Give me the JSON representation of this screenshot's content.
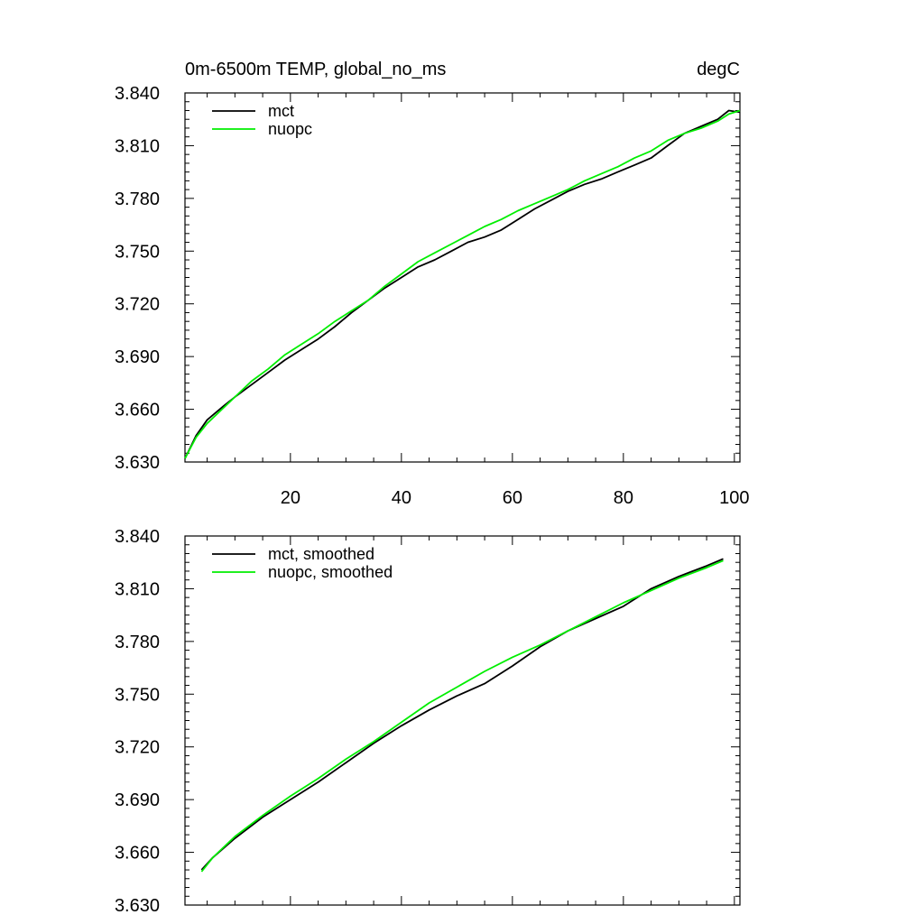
{
  "chart_data": [
    {
      "type": "line",
      "title": "0m-6500m TEMP, global_no_ms",
      "units_label": "degC",
      "xlabel": "",
      "ylabel": "",
      "xlim": [
        1,
        101
      ],
      "ylim": [
        3.63,
        3.84
      ],
      "x_ticks": [
        20,
        40,
        60,
        80,
        100
      ],
      "x_tick_labels": [
        "20",
        "40",
        "60",
        "80",
        "100"
      ],
      "y_ticks": [
        3.63,
        3.66,
        3.69,
        3.72,
        3.75,
        3.78,
        3.81,
        3.84
      ],
      "y_tick_labels": [
        "3.630",
        "3.660",
        "3.690",
        "3.720",
        "3.750",
        "3.780",
        "3.810",
        "3.840"
      ],
      "grid": false,
      "legend_position": "top-left",
      "series": [
        {
          "name": "mct",
          "color": "#000000",
          "x": [
            1,
            3,
            5,
            8,
            10,
            13,
            16,
            19,
            22,
            25,
            28,
            31,
            34,
            37,
            40,
            43,
            46,
            49,
            52,
            55,
            58,
            61,
            64,
            67,
            70,
            73,
            76,
            79,
            82,
            85,
            88,
            91,
            94,
            97,
            99,
            101
          ],
          "y": [
            3.632,
            3.645,
            3.654,
            3.662,
            3.667,
            3.674,
            3.681,
            3.688,
            3.694,
            3.7,
            3.707,
            3.715,
            3.722,
            3.729,
            3.735,
            3.741,
            3.745,
            3.75,
            3.755,
            3.758,
            3.762,
            3.768,
            3.774,
            3.779,
            3.784,
            3.788,
            3.791,
            3.795,
            3.799,
            3.803,
            3.81,
            3.817,
            3.821,
            3.825,
            3.83,
            3.829
          ]
        },
        {
          "name": "nuopc",
          "color": "#00ee00",
          "x": [
            1,
            3,
            5,
            8,
            10,
            13,
            16,
            19,
            22,
            25,
            28,
            31,
            34,
            37,
            40,
            43,
            46,
            49,
            52,
            55,
            58,
            61,
            64,
            67,
            70,
            73,
            76,
            79,
            82,
            85,
            88,
            91,
            94,
            97,
            99,
            101
          ],
          "y": [
            3.632,
            3.644,
            3.652,
            3.661,
            3.667,
            3.676,
            3.683,
            3.691,
            3.697,
            3.703,
            3.71,
            3.716,
            3.722,
            3.73,
            3.737,
            3.744,
            3.749,
            3.754,
            3.759,
            3.764,
            3.768,
            3.773,
            3.777,
            3.781,
            3.785,
            3.79,
            3.794,
            3.798,
            3.803,
            3.807,
            3.813,
            3.817,
            3.82,
            3.824,
            3.828,
            3.83
          ]
        }
      ]
    },
    {
      "type": "line",
      "title": "",
      "xlabel": "",
      "ylabel": "",
      "xlim": [
        1,
        101
      ],
      "ylim": [
        3.63,
        3.84
      ],
      "x_ticks": [
        20,
        40,
        60,
        80,
        100
      ],
      "y_ticks": [
        3.63,
        3.66,
        3.69,
        3.72,
        3.75,
        3.78,
        3.81,
        3.84
      ],
      "y_tick_labels": [
        "3.630",
        "3.660",
        "3.690",
        "3.720",
        "3.750",
        "3.780",
        "3.810",
        "3.840"
      ],
      "grid": false,
      "legend_position": "top-left",
      "series": [
        {
          "name": "mct, smoothed",
          "color": "#000000",
          "x": [
            4,
            6,
            10,
            15,
            20,
            25,
            30,
            35,
            40,
            45,
            50,
            55,
            60,
            65,
            70,
            75,
            80,
            85,
            90,
            95,
            98
          ],
          "y": [
            3.65,
            3.657,
            3.668,
            3.68,
            3.69,
            3.7,
            3.711,
            3.722,
            3.732,
            3.741,
            3.749,
            3.756,
            3.766,
            3.777,
            3.786,
            3.793,
            3.8,
            3.81,
            3.817,
            3.823,
            3.827
          ]
        },
        {
          "name": "nuopc, smoothed",
          "color": "#00ee00",
          "x": [
            4,
            6,
            10,
            15,
            20,
            25,
            30,
            35,
            40,
            45,
            50,
            55,
            60,
            65,
            70,
            75,
            80,
            85,
            90,
            95,
            98
          ],
          "y": [
            3.649,
            3.657,
            3.669,
            3.681,
            3.692,
            3.702,
            3.713,
            3.723,
            3.734,
            3.745,
            3.754,
            3.763,
            3.771,
            3.778,
            3.786,
            3.794,
            3.802,
            3.809,
            3.816,
            3.822,
            3.826
          ]
        }
      ]
    }
  ]
}
